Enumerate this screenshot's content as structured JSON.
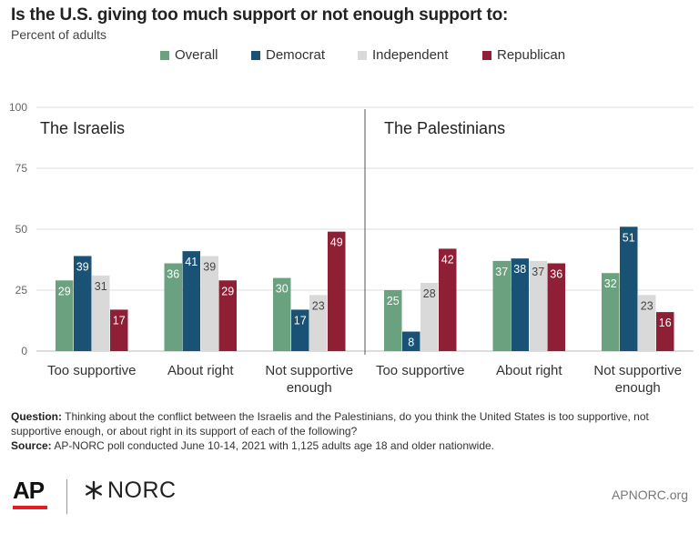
{
  "header": {
    "title": "Is the U.S. giving too much support or not enough support to:",
    "subtitle": "Percent of adults"
  },
  "legend": [
    {
      "label": "Overall",
      "color": "#6aa27f"
    },
    {
      "label": "Democrat",
      "color": "#1a5276"
    },
    {
      "label": "Independent",
      "color": "#d9d9d9"
    },
    {
      "label": "Republican",
      "color": "#8e1f35"
    }
  ],
  "chart_data": {
    "type": "bar",
    "ylim": [
      0,
      100
    ],
    "yticks": [
      0,
      25,
      50,
      75,
      100
    ],
    "grid": true,
    "legend_position": "top",
    "series_names": [
      "Overall",
      "Democrat",
      "Independent",
      "Republican"
    ],
    "panels": [
      {
        "title": "The Israelis",
        "categories": [
          "Too supportive",
          "About right",
          "Not supportive enough"
        ],
        "category_lines": [
          [
            "Too supportive"
          ],
          [
            "About right"
          ],
          [
            "Not supportive",
            "enough"
          ]
        ],
        "series": [
          {
            "name": "Overall",
            "values": [
              29,
              36,
              30
            ]
          },
          {
            "name": "Democrat",
            "values": [
              39,
              41,
              17
            ]
          },
          {
            "name": "Independent",
            "values": [
              31,
              39,
              23
            ]
          },
          {
            "name": "Republican",
            "values": [
              17,
              29,
              49
            ]
          }
        ]
      },
      {
        "title": "The Palestinians",
        "categories": [
          "Too supportive",
          "About right",
          "Not supportive enough"
        ],
        "category_lines": [
          [
            "Too supportive"
          ],
          [
            "About right"
          ],
          [
            "Not supportive",
            "enough"
          ]
        ],
        "series": [
          {
            "name": "Overall",
            "values": [
              25,
              37,
              32
            ]
          },
          {
            "name": "Democrat",
            "values": [
              8,
              38,
              51
            ]
          },
          {
            "name": "Independent",
            "values": [
              28,
              37,
              23
            ]
          },
          {
            "name": "Republican",
            "values": [
              42,
              36,
              16
            ]
          }
        ]
      }
    ]
  },
  "footnote": {
    "question_label": "Question:",
    "question_text": " Thinking about the conflict between the Israelis and the Palestinians, do you think the United States is too supportive, not supportive enough, or about right in its support of each of the following?",
    "source_label": "Source:",
    "source_text": " AP-NORC poll conducted June 10-14, 2021 with 1,125 adults age 18 and older nationwide."
  },
  "branding": {
    "ap_logo": "AP",
    "norc_logo": "NORC",
    "site": "APNORC.org"
  }
}
